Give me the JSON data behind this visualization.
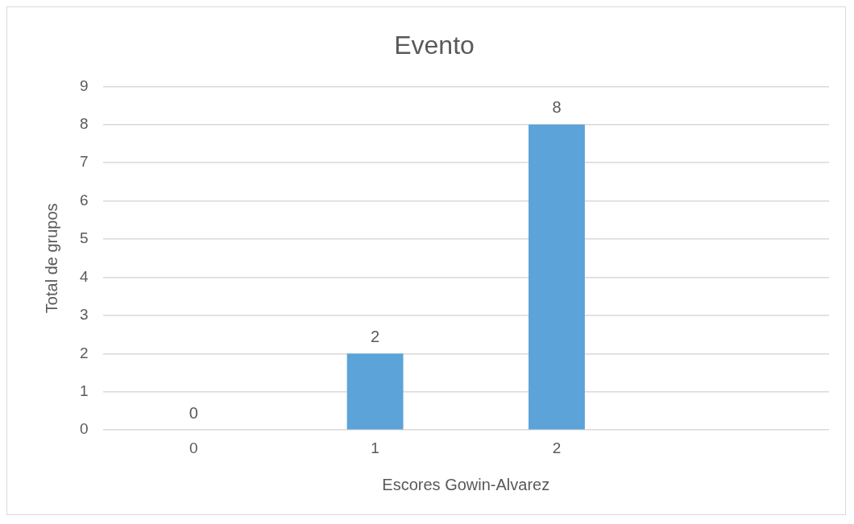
{
  "chart_data": {
    "type": "bar",
    "title": "Evento",
    "xlabel": "Escores Gowin-Alvarez",
    "ylabel": "Total de grupos",
    "categories": [
      "0",
      "1",
      "2",
      null
    ],
    "values": [
      0,
      2,
      8,
      null
    ],
    "color": "#5ba3d9",
    "ylim": [
      0,
      9
    ],
    "yticks": [
      0,
      1,
      2,
      3,
      4,
      5,
      6,
      7,
      8,
      9
    ],
    "grid": "y",
    "data_labels": true,
    "legend": false
  }
}
